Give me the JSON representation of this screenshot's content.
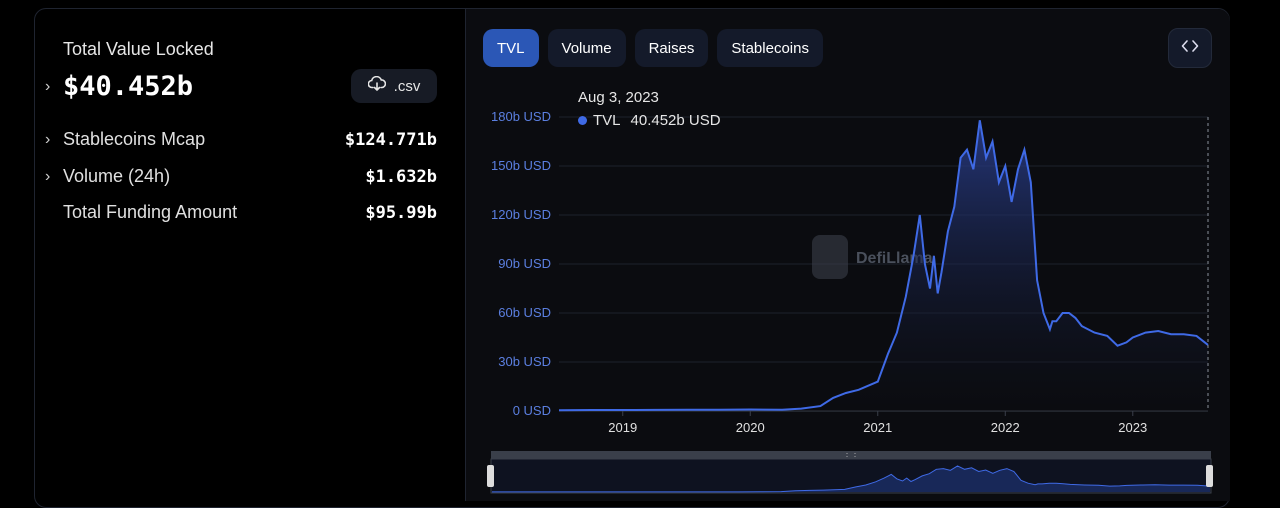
{
  "summary": {
    "tvl_label": "Total Value Locked",
    "tvl_value": "$40.452b",
    "csv_label": ".csv",
    "stats": [
      {
        "label": "Stablecoins Mcap",
        "value": "$124.771b",
        "expandable": true
      },
      {
        "label": "Volume (24h)",
        "value": "$1.632b",
        "expandable": true
      },
      {
        "label": "Total Funding Amount",
        "value": "$95.99b",
        "expandable": false
      }
    ]
  },
  "tabs": [
    {
      "label": "TVL",
      "active": true
    },
    {
      "label": "Volume",
      "active": false
    },
    {
      "label": "Raises",
      "active": false
    },
    {
      "label": "Stablecoins",
      "active": false
    }
  ],
  "tooltip": {
    "date": "Aug 3, 2023",
    "series": "TVL",
    "value": "40.452b USD"
  },
  "watermark": "DefiLlama",
  "colors": {
    "accent": "#3f6ae6",
    "tab_active": "#2b57b6",
    "axis_label": "#5b7fe0"
  },
  "chart_data": {
    "type": "area",
    "ylim": [
      0,
      180
    ],
    "y_ticks": [
      "0 USD",
      "30b USD",
      "60b USD",
      "90b USD",
      "120b USD",
      "150b USD",
      "180b USD"
    ],
    "x_ticks": [
      "2019",
      "2020",
      "2021",
      "2022",
      "2023"
    ],
    "x_range": [
      2018.5,
      2023.59
    ],
    "series": [
      {
        "name": "TVL",
        "x": [
          2018.5,
          2018.75,
          2019.0,
          2019.25,
          2019.5,
          2019.75,
          2020.0,
          2020.25,
          2020.4,
          2020.55,
          2020.65,
          2020.75,
          2020.85,
          2021.0,
          2021.08,
          2021.15,
          2021.22,
          2021.28,
          2021.33,
          2021.37,
          2021.41,
          2021.44,
          2021.47,
          2021.5,
          2021.55,
          2021.6,
          2021.65,
          2021.7,
          2021.75,
          2021.8,
          2021.85,
          2021.9,
          2021.95,
          2022.0,
          2022.05,
          2022.1,
          2022.15,
          2022.2,
          2022.25,
          2022.3,
          2022.35,
          2022.37,
          2022.4,
          2022.45,
          2022.5,
          2022.55,
          2022.6,
          2022.7,
          2022.8,
          2022.88,
          2022.95,
          2023.0,
          2023.1,
          2023.2,
          2023.3,
          2023.4,
          2023.5,
          2023.59
        ],
        "values": [
          0.5,
          0.6,
          0.6,
          0.7,
          0.8,
          0.8,
          0.9,
          0.8,
          1.5,
          3,
          8,
          11,
          13,
          18,
          35,
          48,
          70,
          95,
          120,
          90,
          75,
          95,
          72,
          85,
          110,
          125,
          155,
          160,
          148,
          178,
          155,
          165,
          140,
          150,
          128,
          148,
          160,
          140,
          80,
          60,
          50,
          55,
          55,
          60,
          60,
          57,
          52,
          48,
          46,
          40,
          42,
          45,
          48,
          49,
          47,
          47,
          46,
          40.452
        ]
      }
    ]
  }
}
